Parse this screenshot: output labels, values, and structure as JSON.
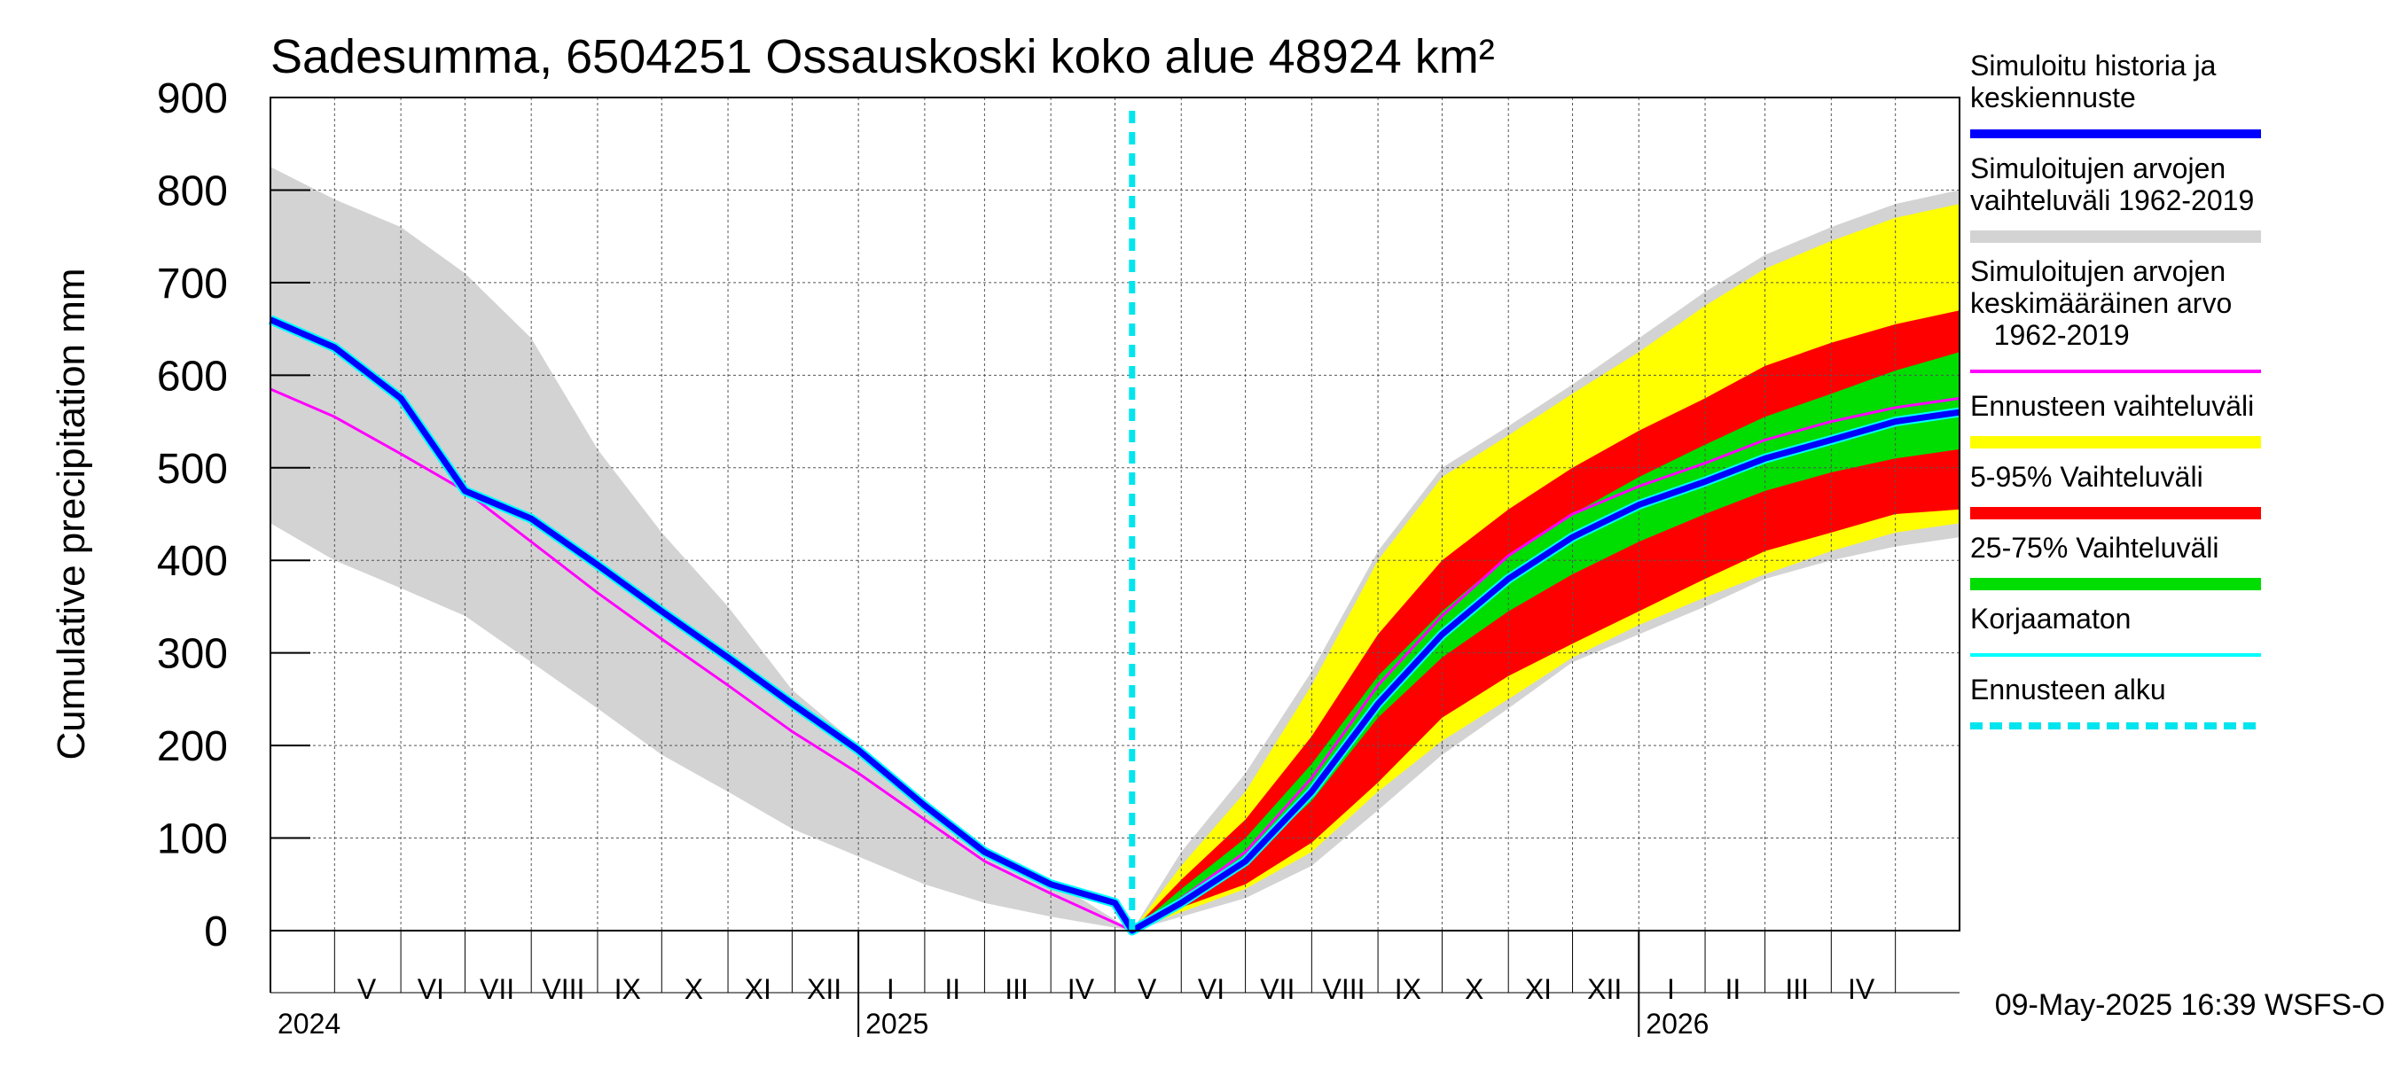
{
  "chart_data": {
    "type": "line",
    "title": "Sadesumma, 6504251 Ossauskoski koko alue 48924 km²",
    "ylabel": "Cumulative precipitation   mm",
    "ylim": [
      0,
      900
    ],
    "yticks": [
      "0",
      "100",
      "200",
      "300",
      "400",
      "500",
      "600",
      "700",
      "800",
      "900"
    ],
    "x_start": "2024-04-01",
    "x_end": "2026-05-31",
    "forecast_start": "2025-05-09",
    "grid": true,
    "month_labels": [
      "V",
      "VI",
      "VII",
      "VIII",
      "IX",
      "X",
      "XI",
      "XII",
      "I",
      "II",
      "III",
      "IV",
      "V",
      "VI",
      "VII",
      "VIII",
      "IX",
      "X",
      "XI",
      "XII",
      "I",
      "II",
      "III",
      "IV"
    ],
    "month_label_dates": [
      "2024-05-16",
      "2024-06-15",
      "2024-07-16",
      "2024-08-16",
      "2024-09-15",
      "2024-10-16",
      "2024-11-15",
      "2024-12-16",
      "2025-01-16",
      "2025-02-14",
      "2025-03-16",
      "2025-04-15",
      "2025-05-16",
      "2025-06-15",
      "2025-07-16",
      "2025-08-16",
      "2025-09-15",
      "2025-10-16",
      "2025-11-15",
      "2025-12-16",
      "2026-01-16",
      "2026-02-14",
      "2026-03-16",
      "2026-04-15"
    ],
    "year_labels": [
      {
        "label": "2024",
        "date": "2024-04-01"
      },
      {
        "label": "2025",
        "date": "2025-01-01"
      },
      {
        "label": "2026",
        "date": "2026-01-01"
      }
    ],
    "series": [
      {
        "name": "Simuloitujen arvojen vaihteluväli 1962-2019",
        "kind": "band",
        "color": "#d3d3d3",
        "lower": [
          [
            "2024-04-01",
            440
          ],
          [
            "2024-05-01",
            400
          ],
          [
            "2024-06-01",
            370
          ],
          [
            "2024-07-01",
            340
          ],
          [
            "2024-08-01",
            290
          ],
          [
            "2024-09-01",
            240
          ],
          [
            "2024-10-01",
            190
          ],
          [
            "2024-11-01",
            150
          ],
          [
            "2024-12-01",
            110
          ],
          [
            "2025-01-01",
            80
          ],
          [
            "2025-02-01",
            50
          ],
          [
            "2025-03-01",
            30
          ],
          [
            "2025-04-01",
            15
          ],
          [
            "2025-05-09",
            0
          ],
          [
            "2025-06-01",
            15
          ],
          [
            "2025-07-01",
            35
          ],
          [
            "2025-08-01",
            70
          ],
          [
            "2025-09-01",
            130
          ],
          [
            "2025-10-01",
            190
          ],
          [
            "2025-11-01",
            240
          ],
          [
            "2025-12-01",
            290
          ],
          [
            "2026-01-01",
            320
          ],
          [
            "2026-02-01",
            350
          ],
          [
            "2026-03-01",
            380
          ],
          [
            "2026-04-01",
            400
          ],
          [
            "2026-05-01",
            415
          ],
          [
            "2026-05-31",
            425
          ]
        ],
        "upper": [
          [
            "2024-04-01",
            825
          ],
          [
            "2024-05-01",
            790
          ],
          [
            "2024-06-01",
            760
          ],
          [
            "2024-07-01",
            710
          ],
          [
            "2024-08-01",
            640
          ],
          [
            "2024-09-01",
            520
          ],
          [
            "2024-10-01",
            430
          ],
          [
            "2024-11-01",
            350
          ],
          [
            "2024-12-01",
            260
          ],
          [
            "2025-01-01",
            200
          ],
          [
            "2025-02-01",
            140
          ],
          [
            "2025-03-01",
            90
          ],
          [
            "2025-04-01",
            55
          ],
          [
            "2025-05-09",
            0
          ],
          [
            "2025-06-01",
            85
          ],
          [
            "2025-07-01",
            170
          ],
          [
            "2025-08-01",
            280
          ],
          [
            "2025-09-01",
            410
          ],
          [
            "2025-10-01",
            500
          ],
          [
            "2025-11-01",
            545
          ],
          [
            "2025-12-01",
            590
          ],
          [
            "2026-01-01",
            640
          ],
          [
            "2026-02-01",
            690
          ],
          [
            "2026-03-01",
            730
          ],
          [
            "2026-04-01",
            760
          ],
          [
            "2026-05-01",
            785
          ],
          [
            "2026-05-31",
            800
          ]
        ]
      },
      {
        "name": "Ennusteen vaihteluväli",
        "kind": "band",
        "color": "#ffff00",
        "lower": [
          [
            "2025-05-09",
            0
          ],
          [
            "2025-06-01",
            20
          ],
          [
            "2025-07-01",
            45
          ],
          [
            "2025-08-01",
            85
          ],
          [
            "2025-09-01",
            150
          ],
          [
            "2025-10-01",
            205
          ],
          [
            "2025-11-01",
            250
          ],
          [
            "2025-12-01",
            295
          ],
          [
            "2026-01-01",
            330
          ],
          [
            "2026-02-01",
            360
          ],
          [
            "2026-03-01",
            385
          ],
          [
            "2026-04-01",
            410
          ],
          [
            "2026-05-01",
            430
          ],
          [
            "2026-05-31",
            440
          ]
        ],
        "upper": [
          [
            "2025-05-09",
            0
          ],
          [
            "2025-06-01",
            70
          ],
          [
            "2025-07-01",
            150
          ],
          [
            "2025-08-01",
            265
          ],
          [
            "2025-09-01",
            400
          ],
          [
            "2025-10-01",
            490
          ],
          [
            "2025-11-01",
            535
          ],
          [
            "2025-12-01",
            580
          ],
          [
            "2026-01-01",
            625
          ],
          [
            "2026-02-01",
            675
          ],
          [
            "2026-03-01",
            715
          ],
          [
            "2026-04-01",
            745
          ],
          [
            "2026-05-01",
            770
          ],
          [
            "2026-05-31",
            785
          ]
        ]
      },
      {
        "name": "5-95% Vaihteluväli",
        "kind": "band",
        "color": "#ff0000",
        "lower": [
          [
            "2025-05-09",
            0
          ],
          [
            "2025-06-01",
            25
          ],
          [
            "2025-07-01",
            50
          ],
          [
            "2025-08-01",
            95
          ],
          [
            "2025-09-01",
            160
          ],
          [
            "2025-10-01",
            230
          ],
          [
            "2025-11-01",
            275
          ],
          [
            "2025-12-01",
            310
          ],
          [
            "2026-01-01",
            345
          ],
          [
            "2026-02-01",
            380
          ],
          [
            "2026-03-01",
            410
          ],
          [
            "2026-04-01",
            430
          ],
          [
            "2026-05-01",
            450
          ],
          [
            "2026-05-31",
            455
          ]
        ],
        "upper": [
          [
            "2025-05-09",
            0
          ],
          [
            "2025-06-01",
            55
          ],
          [
            "2025-07-01",
            120
          ],
          [
            "2025-08-01",
            210
          ],
          [
            "2025-09-01",
            320
          ],
          [
            "2025-10-01",
            400
          ],
          [
            "2025-11-01",
            455
          ],
          [
            "2025-12-01",
            500
          ],
          [
            "2026-01-01",
            540
          ],
          [
            "2026-02-01",
            575
          ],
          [
            "2026-03-01",
            610
          ],
          [
            "2026-04-01",
            635
          ],
          [
            "2026-05-01",
            655
          ],
          [
            "2026-05-31",
            670
          ]
        ]
      },
      {
        "name": "25-75% Vaihteluväli",
        "kind": "band",
        "color": "#00dd00",
        "lower": [
          [
            "2025-05-09",
            0
          ],
          [
            "2025-06-01",
            35
          ],
          [
            "2025-07-01",
            75
          ],
          [
            "2025-08-01",
            140
          ],
          [
            "2025-09-01",
            230
          ],
          [
            "2025-10-01",
            295
          ],
          [
            "2025-11-01",
            345
          ],
          [
            "2025-12-01",
            385
          ],
          [
            "2026-01-01",
            420
          ],
          [
            "2026-02-01",
            450
          ],
          [
            "2026-03-01",
            475
          ],
          [
            "2026-04-01",
            495
          ],
          [
            "2026-05-01",
            510
          ],
          [
            "2026-05-31",
            520
          ]
        ],
        "upper": [
          [
            "2025-05-09",
            0
          ],
          [
            "2025-06-01",
            45
          ],
          [
            "2025-07-01",
            100
          ],
          [
            "2025-08-01",
            180
          ],
          [
            "2025-09-01",
            275
          ],
          [
            "2025-10-01",
            345
          ],
          [
            "2025-11-01",
            405
          ],
          [
            "2025-12-01",
            450
          ],
          [
            "2026-01-01",
            490
          ],
          [
            "2026-02-01",
            525
          ],
          [
            "2026-03-01",
            555
          ],
          [
            "2026-04-01",
            580
          ],
          [
            "2026-05-01",
            605
          ],
          [
            "2026-05-31",
            625
          ]
        ]
      },
      {
        "name": "Simuloitujen arvojen keskimääräinen arvo 1962-2019",
        "kind": "line",
        "color": "#ff00ff",
        "width": 3,
        "points": [
          [
            "2024-04-01",
            585
          ],
          [
            "2024-05-01",
            555
          ],
          [
            "2024-06-01",
            515
          ],
          [
            "2024-07-01",
            475
          ],
          [
            "2024-08-01",
            420
          ],
          [
            "2024-09-01",
            365
          ],
          [
            "2024-10-01",
            315
          ],
          [
            "2024-11-01",
            265
          ],
          [
            "2024-12-01",
            215
          ],
          [
            "2025-01-01",
            170
          ],
          [
            "2025-02-01",
            120
          ],
          [
            "2025-03-01",
            75
          ],
          [
            "2025-04-01",
            40
          ],
          [
            "2025-05-09",
            0
          ],
          [
            "2025-06-01",
            35
          ],
          [
            "2025-07-01",
            85
          ],
          [
            "2025-08-01",
            165
          ],
          [
            "2025-09-01",
            265
          ],
          [
            "2025-10-01",
            340
          ],
          [
            "2025-11-01",
            405
          ],
          [
            "2025-12-01",
            450
          ],
          [
            "2026-01-01",
            480
          ],
          [
            "2026-02-01",
            505
          ],
          [
            "2026-03-01",
            530
          ],
          [
            "2026-04-01",
            550
          ],
          [
            "2026-05-01",
            565
          ],
          [
            "2026-05-31",
            575
          ]
        ]
      },
      {
        "name": "Korjaamaton",
        "kind": "line",
        "color": "#00ffff",
        "width": 11,
        "points": [
          [
            "2024-04-01",
            660
          ],
          [
            "2024-05-01",
            630
          ],
          [
            "2024-06-01",
            575
          ],
          [
            "2024-07-01",
            475
          ],
          [
            "2024-08-01",
            445
          ],
          [
            "2024-09-01",
            395
          ],
          [
            "2024-10-01",
            345
          ],
          [
            "2024-11-01",
            295
          ],
          [
            "2024-12-01",
            245
          ],
          [
            "2025-01-01",
            195
          ],
          [
            "2025-02-01",
            135
          ],
          [
            "2025-03-01",
            85
          ],
          [
            "2025-04-01",
            50
          ],
          [
            "2025-05-01",
            30
          ],
          [
            "2025-05-09",
            0
          ],
          [
            "2025-06-01",
            30
          ],
          [
            "2025-07-01",
            75
          ],
          [
            "2025-08-01",
            150
          ],
          [
            "2025-09-01",
            245
          ],
          [
            "2025-10-01",
            320
          ],
          [
            "2025-11-01",
            380
          ],
          [
            "2025-12-01",
            425
          ],
          [
            "2026-01-01",
            460
          ],
          [
            "2026-02-01",
            485
          ],
          [
            "2026-03-01",
            510
          ],
          [
            "2026-04-01",
            530
          ],
          [
            "2026-05-01",
            550
          ],
          [
            "2026-05-31",
            560
          ]
        ]
      },
      {
        "name": "Simuloitu historia ja keskiennuste",
        "kind": "line",
        "color": "#0000ff",
        "width": 7,
        "points": [
          [
            "2024-04-01",
            660
          ],
          [
            "2024-05-01",
            630
          ],
          [
            "2024-06-01",
            575
          ],
          [
            "2024-07-01",
            475
          ],
          [
            "2024-08-01",
            445
          ],
          [
            "2024-09-01",
            395
          ],
          [
            "2024-10-01",
            345
          ],
          [
            "2024-11-01",
            295
          ],
          [
            "2024-12-01",
            245
          ],
          [
            "2025-01-01",
            195
          ],
          [
            "2025-02-01",
            135
          ],
          [
            "2025-03-01",
            85
          ],
          [
            "2025-04-01",
            50
          ],
          [
            "2025-05-01",
            30
          ],
          [
            "2025-05-09",
            0
          ],
          [
            "2025-06-01",
            30
          ],
          [
            "2025-07-01",
            75
          ],
          [
            "2025-08-01",
            150
          ],
          [
            "2025-09-01",
            245
          ],
          [
            "2025-10-01",
            320
          ],
          [
            "2025-11-01",
            380
          ],
          [
            "2025-12-01",
            425
          ],
          [
            "2026-01-01",
            460
          ],
          [
            "2026-02-01",
            485
          ],
          [
            "2026-03-01",
            510
          ],
          [
            "2026-04-01",
            530
          ],
          [
            "2026-05-01",
            550
          ],
          [
            "2026-05-31",
            560
          ]
        ]
      }
    ],
    "legend": {
      "placement": "right",
      "items": [
        {
          "lines": [
            "Simuloitu historia ja",
            "keskiennuste"
          ],
          "color": "#0000ff",
          "style": "line-thick"
        },
        {
          "lines": [
            "Simuloitujen arvojen",
            "vaihteluväli 1962-2019"
          ],
          "color": "#d3d3d3",
          "style": "bar"
        },
        {
          "lines": [
            "Simuloitujen arvojen",
            "keskimääräinen arvo",
            "   1962-2019"
          ],
          "color": "#ff00ff",
          "style": "line"
        },
        {
          "lines": [
            "Ennusteen vaihteluväli"
          ],
          "color": "#ffff00",
          "style": "bar"
        },
        {
          "lines": [
            "5-95% Vaihteluväli"
          ],
          "color": "#ff0000",
          "style": "bar"
        },
        {
          "lines": [
            "25-75% Vaihteluväli"
          ],
          "color": "#00dd00",
          "style": "bar"
        },
        {
          "lines": [
            "Korjaamaton"
          ],
          "color": "#00ffff",
          "style": "line"
        },
        {
          "lines": [
            "Ennusteen alku"
          ],
          "color": "#00e5ee",
          "style": "dashed"
        }
      ]
    },
    "footer": "09-May-2025 16:39 WSFS-O"
  }
}
